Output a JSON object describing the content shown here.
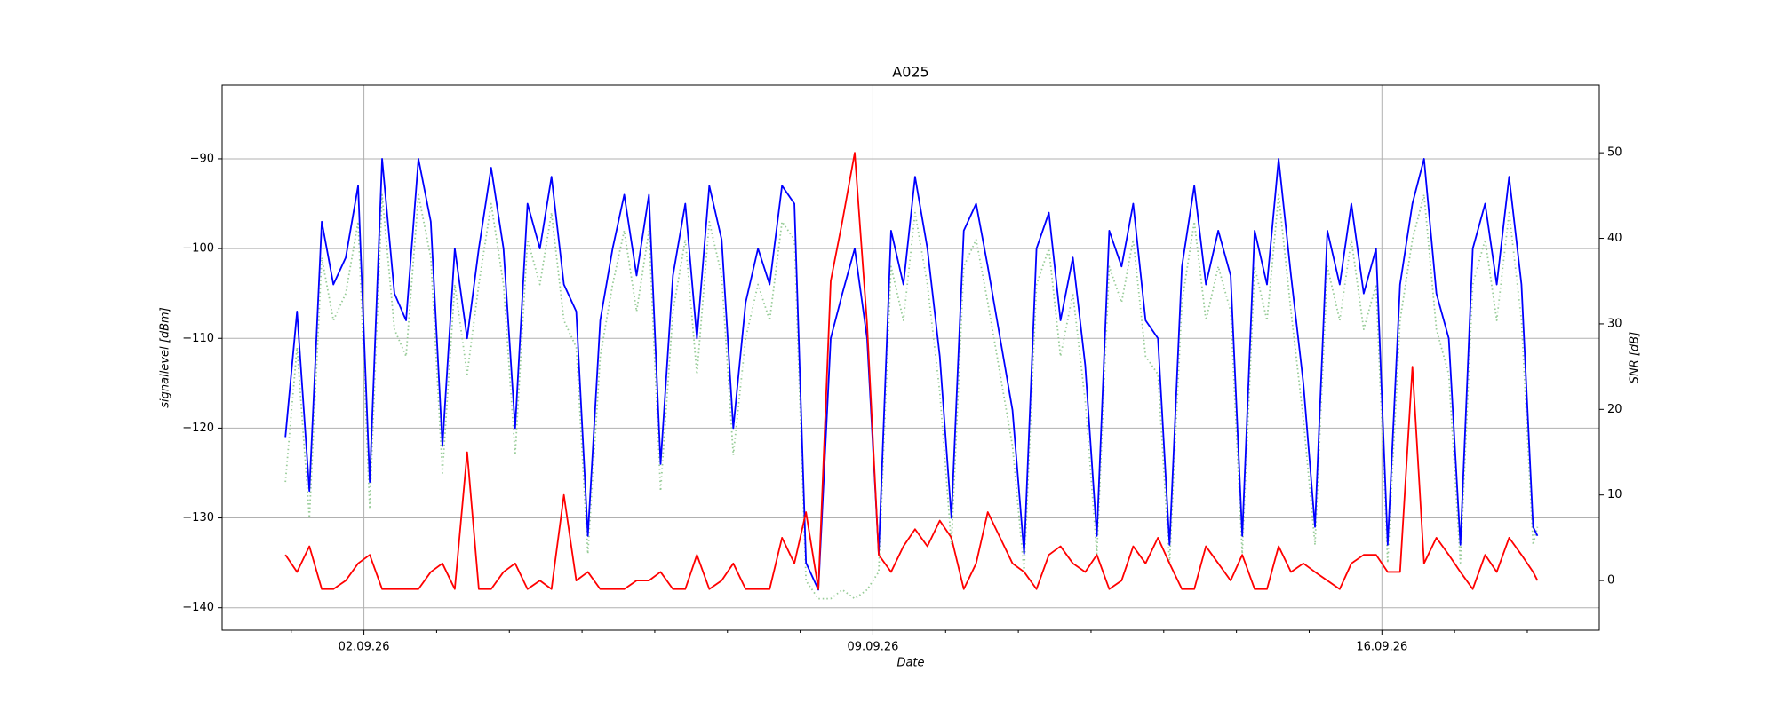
{
  "chart_data": {
    "type": "line",
    "title": "A025",
    "x_label": "Date",
    "y_label": "signallevel [dBm]",
    "y2_label": "SNR [dB]",
    "x": [
      0.92,
      1.08,
      1.25,
      1.42,
      1.58,
      1.75,
      1.92,
      2.08,
      2.25,
      2.42,
      2.58,
      2.75,
      2.92,
      3.08,
      3.25,
      3.42,
      3.58,
      3.75,
      3.92,
      4.08,
      4.25,
      4.42,
      4.58,
      4.75,
      4.92,
      5.08,
      5.25,
      5.42,
      5.58,
      5.75,
      5.92,
      6.08,
      6.25,
      6.42,
      6.58,
      6.75,
      6.92,
      7.08,
      7.25,
      7.42,
      7.58,
      7.75,
      7.92,
      8.08,
      8.25,
      8.42,
      8.58,
      8.75,
      8.92,
      9.08,
      9.25,
      9.42,
      9.58,
      9.75,
      9.92,
      10.08,
      10.25,
      10.42,
      10.58,
      10.75,
      10.92,
      11.08,
      11.25,
      11.42,
      11.58,
      11.75,
      11.92,
      12.08,
      12.25,
      12.42,
      12.58,
      12.75,
      12.92,
      13.08,
      13.25,
      13.42,
      13.58,
      13.75,
      13.92,
      14.08,
      14.25,
      14.42,
      14.58,
      14.75,
      14.92,
      15.08,
      15.25,
      15.42,
      15.58,
      15.75,
      15.92,
      16.08,
      16.25,
      16.42,
      16.58,
      16.75,
      16.92,
      17.08,
      17.25,
      17.42,
      17.58,
      17.75,
      17.92,
      18.08,
      18.14
    ],
    "series": [
      {
        "color": "#98cc98",
        "linestyle": "dotted",
        "axis": "y",
        "values": [
          -126,
          -111,
          -130,
          -101,
          -108,
          -105,
          -97,
          -129,
          -94,
          -109,
          -112,
          -94,
          -101,
          -125,
          -104,
          -114,
          -104,
          -95,
          -104,
          -123,
          -99,
          -104,
          -96,
          -108,
          -111,
          -134,
          -112,
          -104,
          -98,
          -107,
          -98,
          -127,
          -107,
          -99,
          -114,
          -97,
          -103,
          -123,
          -110,
          -104,
          -108,
          -97,
          -99,
          -137,
          -139,
          -139,
          -138,
          -139,
          -138,
          -136,
          -102,
          -108,
          -96,
          -104,
          -116,
          -133,
          -102,
          -99,
          -106,
          -114,
          -122,
          -136,
          -104,
          -100,
          -112,
          -105,
          -117,
          -134,
          -102,
          -106,
          -99,
          -112,
          -114,
          -135,
          -106,
          -97,
          -108,
          -102,
          -107,
          -134,
          -102,
          -108,
          -94,
          -107,
          -119,
          -133,
          -102,
          -108,
          -99,
          -109,
          -104,
          -135,
          -108,
          -99,
          -94,
          -109,
          -114,
          -135,
          -104,
          -99,
          -108,
          -96,
          -108,
          -133,
          -131
        ]
      },
      {
        "color": "#0000ff",
        "axis": "y",
        "values": [
          -121,
          -107,
          -127,
          -97,
          -104,
          -101,
          -93,
          -126,
          -90,
          -105,
          -108,
          -90,
          -97,
          -122,
          -100,
          -110,
          -100,
          -91,
          -100,
          -120,
          -95,
          -100,
          -92,
          -104,
          -107,
          -132,
          -108,
          -100,
          -94,
          -103,
          -94,
          -124,
          -103,
          -95,
          -110,
          -93,
          -99,
          -120,
          -106,
          -100,
          -104,
          -93,
          -95,
          -135,
          -138,
          -110,
          -105,
          -100,
          -110,
          -134,
          -98,
          -104,
          -92,
          -100,
          -112,
          -130,
          -98,
          -95,
          -102,
          -110,
          -118,
          -134,
          -100,
          -96,
          -108,
          -101,
          -113,
          -132,
          -98,
          -102,
          -95,
          -108,
          -110,
          -133,
          -102,
          -93,
          -104,
          -98,
          -103,
          -132,
          -98,
          -104,
          -90,
          -103,
          -115,
          -131,
          -98,
          -104,
          -95,
          -105,
          -100,
          -133,
          -104,
          -95,
          -90,
          -105,
          -110,
          -133,
          -100,
          -95,
          -104,
          -92,
          -104,
          -131,
          -132
        ]
      },
      {
        "color": "#ff0000",
        "axis": "y2",
        "values": [
          3,
          1,
          4,
          -1,
          -1,
          0,
          2,
          3,
          -1,
          -1,
          -1,
          -1,
          1,
          2,
          -1,
          15,
          -1,
          -1,
          1,
          2,
          -1,
          0,
          -1,
          10,
          0,
          1,
          -1,
          -1,
          -1,
          0,
          0,
          1,
          -1,
          -1,
          3,
          -1,
          0,
          2,
          -1,
          -1,
          -1,
          5,
          2,
          8,
          -1,
          35,
          42,
          50,
          30,
          3,
          1,
          4,
          6,
          4,
          7,
          5,
          -1,
          2,
          8,
          5,
          2,
          1,
          -1,
          3,
          4,
          2,
          1,
          3,
          -1,
          0,
          4,
          2,
          5,
          2,
          -1,
          -1,
          4,
          2,
          0,
          3,
          -1,
          -1,
          4,
          1,
          2,
          1,
          0,
          -1,
          2,
          3,
          3,
          1,
          1,
          25,
          2,
          5,
          3,
          1,
          -1,
          3,
          1,
          5,
          3,
          1,
          0
        ]
      }
    ],
    "xlim": [
      0.05,
      18.99
    ],
    "xticks": [
      {
        "value": 2,
        "label": "02.09.26"
      },
      {
        "value": 9,
        "label": "09.09.26"
      },
      {
        "value": 16,
        "label": "16.09.26"
      }
    ],
    "xminorticks": [
      1,
      3,
      4,
      5,
      6,
      7,
      8,
      10,
      11,
      12,
      13,
      14,
      15,
      17,
      18
    ],
    "ylim": [
      -142.5,
      -81.8
    ],
    "yticks": [
      {
        "value": -140,
        "label": "−140"
      },
      {
        "value": -130,
        "label": "−130"
      },
      {
        "value": -120,
        "label": "−120"
      },
      {
        "value": -110,
        "label": "−110"
      },
      {
        "value": -100,
        "label": "−100"
      },
      {
        "value": -90,
        "label": "−90"
      }
    ],
    "y2lim": [
      -5.8,
      57.9
    ],
    "y2ticks": [
      0,
      10,
      20,
      30,
      40,
      50
    ],
    "grid": true
  }
}
